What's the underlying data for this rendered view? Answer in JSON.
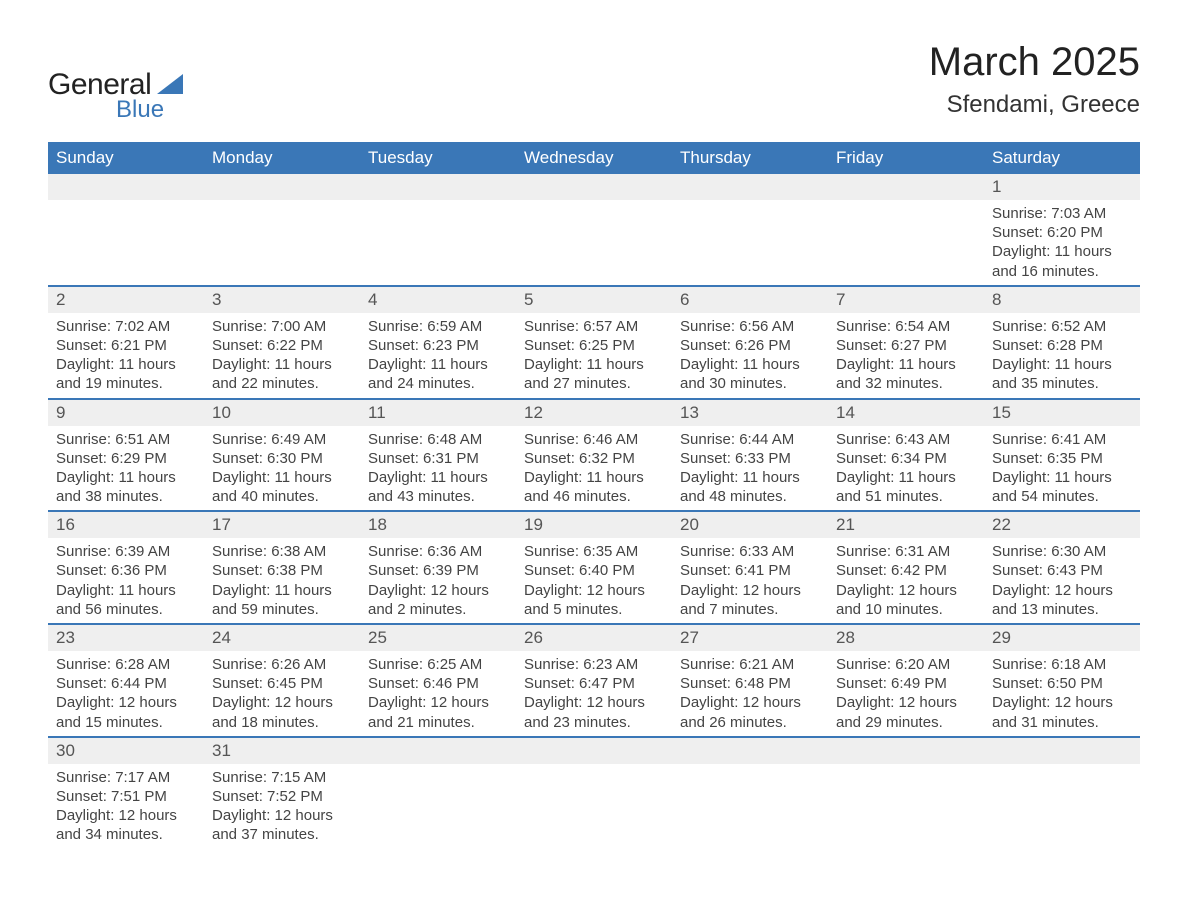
{
  "colors": {
    "header_bg": "#3a77b7",
    "header_text": "#ffffff",
    "date_row_bg": "#efefef",
    "row_border": "#3a77b7",
    "body_text": "#444444",
    "date_text": "#555555",
    "title_text": "#222222",
    "logo_blue": "#3a77b7"
  },
  "typography": {
    "month_title_fontsize": 40,
    "location_fontsize": 24,
    "weekday_fontsize": 17,
    "date_fontsize": 17,
    "detail_fontsize": 15,
    "logo_general_fontsize": 30,
    "logo_blue_fontsize": 24
  },
  "logo": {
    "general": "General",
    "blue": "Blue"
  },
  "title": "March 2025",
  "location": "Sfendami, Greece",
  "weekdays": [
    "Sunday",
    "Monday",
    "Tuesday",
    "Wednesday",
    "Thursday",
    "Friday",
    "Saturday"
  ],
  "weeks": [
    {
      "dates": [
        "",
        "",
        "",
        "",
        "",
        "",
        "1"
      ],
      "details": [
        {},
        {},
        {},
        {},
        {},
        {},
        {
          "sunrise": "Sunrise: 7:03 AM",
          "sunset": "Sunset: 6:20 PM",
          "day1": "Daylight: 11 hours",
          "day2": "and 16 minutes."
        }
      ]
    },
    {
      "dates": [
        "2",
        "3",
        "4",
        "5",
        "6",
        "7",
        "8"
      ],
      "details": [
        {
          "sunrise": "Sunrise: 7:02 AM",
          "sunset": "Sunset: 6:21 PM",
          "day1": "Daylight: 11 hours",
          "day2": "and 19 minutes."
        },
        {
          "sunrise": "Sunrise: 7:00 AM",
          "sunset": "Sunset: 6:22 PM",
          "day1": "Daylight: 11 hours",
          "day2": "and 22 minutes."
        },
        {
          "sunrise": "Sunrise: 6:59 AM",
          "sunset": "Sunset: 6:23 PM",
          "day1": "Daylight: 11 hours",
          "day2": "and 24 minutes."
        },
        {
          "sunrise": "Sunrise: 6:57 AM",
          "sunset": "Sunset: 6:25 PM",
          "day1": "Daylight: 11 hours",
          "day2": "and 27 minutes."
        },
        {
          "sunrise": "Sunrise: 6:56 AM",
          "sunset": "Sunset: 6:26 PM",
          "day1": "Daylight: 11 hours",
          "day2": "and 30 minutes."
        },
        {
          "sunrise": "Sunrise: 6:54 AM",
          "sunset": "Sunset: 6:27 PM",
          "day1": "Daylight: 11 hours",
          "day2": "and 32 minutes."
        },
        {
          "sunrise": "Sunrise: 6:52 AM",
          "sunset": "Sunset: 6:28 PM",
          "day1": "Daylight: 11 hours",
          "day2": "and 35 minutes."
        }
      ]
    },
    {
      "dates": [
        "9",
        "10",
        "11",
        "12",
        "13",
        "14",
        "15"
      ],
      "details": [
        {
          "sunrise": "Sunrise: 6:51 AM",
          "sunset": "Sunset: 6:29 PM",
          "day1": "Daylight: 11 hours",
          "day2": "and 38 minutes."
        },
        {
          "sunrise": "Sunrise: 6:49 AM",
          "sunset": "Sunset: 6:30 PM",
          "day1": "Daylight: 11 hours",
          "day2": "and 40 minutes."
        },
        {
          "sunrise": "Sunrise: 6:48 AM",
          "sunset": "Sunset: 6:31 PM",
          "day1": "Daylight: 11 hours",
          "day2": "and 43 minutes."
        },
        {
          "sunrise": "Sunrise: 6:46 AM",
          "sunset": "Sunset: 6:32 PM",
          "day1": "Daylight: 11 hours",
          "day2": "and 46 minutes."
        },
        {
          "sunrise": "Sunrise: 6:44 AM",
          "sunset": "Sunset: 6:33 PM",
          "day1": "Daylight: 11 hours",
          "day2": "and 48 minutes."
        },
        {
          "sunrise": "Sunrise: 6:43 AM",
          "sunset": "Sunset: 6:34 PM",
          "day1": "Daylight: 11 hours",
          "day2": "and 51 minutes."
        },
        {
          "sunrise": "Sunrise: 6:41 AM",
          "sunset": "Sunset: 6:35 PM",
          "day1": "Daylight: 11 hours",
          "day2": "and 54 minutes."
        }
      ]
    },
    {
      "dates": [
        "16",
        "17",
        "18",
        "19",
        "20",
        "21",
        "22"
      ],
      "details": [
        {
          "sunrise": "Sunrise: 6:39 AM",
          "sunset": "Sunset: 6:36 PM",
          "day1": "Daylight: 11 hours",
          "day2": "and 56 minutes."
        },
        {
          "sunrise": "Sunrise: 6:38 AM",
          "sunset": "Sunset: 6:38 PM",
          "day1": "Daylight: 11 hours",
          "day2": "and 59 minutes."
        },
        {
          "sunrise": "Sunrise: 6:36 AM",
          "sunset": "Sunset: 6:39 PM",
          "day1": "Daylight: 12 hours",
          "day2": "and 2 minutes."
        },
        {
          "sunrise": "Sunrise: 6:35 AM",
          "sunset": "Sunset: 6:40 PM",
          "day1": "Daylight: 12 hours",
          "day2": "and 5 minutes."
        },
        {
          "sunrise": "Sunrise: 6:33 AM",
          "sunset": "Sunset: 6:41 PM",
          "day1": "Daylight: 12 hours",
          "day2": "and 7 minutes."
        },
        {
          "sunrise": "Sunrise: 6:31 AM",
          "sunset": "Sunset: 6:42 PM",
          "day1": "Daylight: 12 hours",
          "day2": "and 10 minutes."
        },
        {
          "sunrise": "Sunrise: 6:30 AM",
          "sunset": "Sunset: 6:43 PM",
          "day1": "Daylight: 12 hours",
          "day2": "and 13 minutes."
        }
      ]
    },
    {
      "dates": [
        "23",
        "24",
        "25",
        "26",
        "27",
        "28",
        "29"
      ],
      "details": [
        {
          "sunrise": "Sunrise: 6:28 AM",
          "sunset": "Sunset: 6:44 PM",
          "day1": "Daylight: 12 hours",
          "day2": "and 15 minutes."
        },
        {
          "sunrise": "Sunrise: 6:26 AM",
          "sunset": "Sunset: 6:45 PM",
          "day1": "Daylight: 12 hours",
          "day2": "and 18 minutes."
        },
        {
          "sunrise": "Sunrise: 6:25 AM",
          "sunset": "Sunset: 6:46 PM",
          "day1": "Daylight: 12 hours",
          "day2": "and 21 minutes."
        },
        {
          "sunrise": "Sunrise: 6:23 AM",
          "sunset": "Sunset: 6:47 PM",
          "day1": "Daylight: 12 hours",
          "day2": "and 23 minutes."
        },
        {
          "sunrise": "Sunrise: 6:21 AM",
          "sunset": "Sunset: 6:48 PM",
          "day1": "Daylight: 12 hours",
          "day2": "and 26 minutes."
        },
        {
          "sunrise": "Sunrise: 6:20 AM",
          "sunset": "Sunset: 6:49 PM",
          "day1": "Daylight: 12 hours",
          "day2": "and 29 minutes."
        },
        {
          "sunrise": "Sunrise: 6:18 AM",
          "sunset": "Sunset: 6:50 PM",
          "day1": "Daylight: 12 hours",
          "day2": "and 31 minutes."
        }
      ]
    },
    {
      "dates": [
        "30",
        "31",
        "",
        "",
        "",
        "",
        ""
      ],
      "details": [
        {
          "sunrise": "Sunrise: 7:17 AM",
          "sunset": "Sunset: 7:51 PM",
          "day1": "Daylight: 12 hours",
          "day2": "and 34 minutes."
        },
        {
          "sunrise": "Sunrise: 7:15 AM",
          "sunset": "Sunset: 7:52 PM",
          "day1": "Daylight: 12 hours",
          "day2": "and 37 minutes."
        },
        {},
        {},
        {},
        {},
        {}
      ]
    }
  ]
}
